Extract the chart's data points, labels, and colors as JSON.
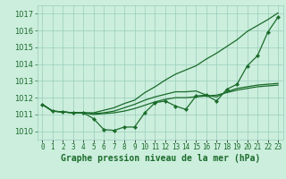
{
  "title": "Graphe pression niveau de la mer (hPa)",
  "hours": [
    0,
    1,
    2,
    3,
    4,
    5,
    6,
    7,
    8,
    9,
    10,
    11,
    12,
    13,
    14,
    15,
    16,
    17,
    18,
    19,
    20,
    21,
    22,
    23
  ],
  "ylim": [
    1009.5,
    1017.5
  ],
  "yticks": [
    1010,
    1011,
    1012,
    1013,
    1014,
    1015,
    1016,
    1017
  ],
  "background_color": "#cceedd",
  "grid_color": "#99ccbb",
  "line_color": "#1a6b2a",
  "line_wavy": [
    1011.6,
    1011.2,
    1011.15,
    1011.1,
    1011.1,
    1010.75,
    1010.1,
    1010.05,
    1010.25,
    1010.25,
    1011.1,
    1011.7,
    1011.8,
    1011.5,
    1011.3,
    1012.1,
    1012.15,
    1011.8,
    1012.5,
    1012.8,
    1013.9,
    1014.5,
    1015.9,
    1016.8
  ],
  "line_upper": [
    1011.6,
    1011.2,
    1011.15,
    1011.1,
    1011.1,
    1011.1,
    1011.25,
    1011.4,
    1011.65,
    1011.85,
    1012.3,
    1012.65,
    1013.05,
    1013.4,
    1013.65,
    1013.9,
    1014.3,
    1014.65,
    1015.05,
    1015.45,
    1015.95,
    1016.3,
    1016.65,
    1017.05
  ],
  "line_mid": [
    1011.6,
    1011.2,
    1011.15,
    1011.1,
    1011.1,
    1011.05,
    1011.1,
    1011.2,
    1011.4,
    1011.6,
    1011.85,
    1012.05,
    1012.2,
    1012.35,
    1012.35,
    1012.4,
    1012.15,
    1012.05,
    1012.35,
    1012.55,
    1012.65,
    1012.75,
    1012.8,
    1012.85
  ],
  "line_lower": [
    1011.6,
    1011.2,
    1011.15,
    1011.1,
    1011.1,
    1011.0,
    1011.05,
    1011.1,
    1011.2,
    1011.35,
    1011.55,
    1011.75,
    1011.9,
    1012.0,
    1012.0,
    1012.05,
    1012.1,
    1012.15,
    1012.3,
    1012.45,
    1012.55,
    1012.65,
    1012.7,
    1012.75
  ],
  "title_color": "#1a6b2a",
  "title_fontsize": 7,
  "tick_fontsize": 5.5,
  "ytick_fontsize": 6
}
